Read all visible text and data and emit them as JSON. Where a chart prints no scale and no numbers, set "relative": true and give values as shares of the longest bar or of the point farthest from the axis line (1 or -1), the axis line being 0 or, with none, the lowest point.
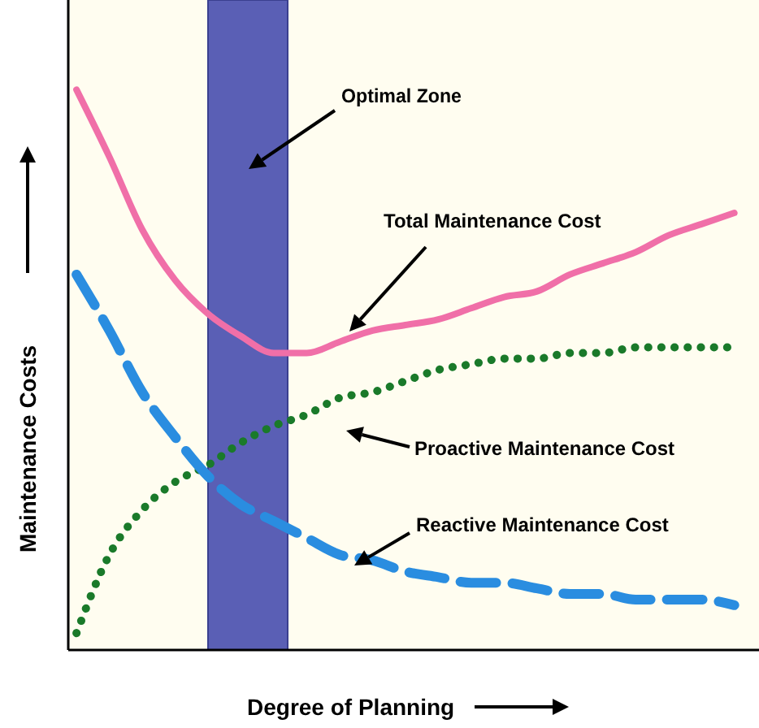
{
  "chart_data": {
    "type": "line",
    "relative": true,
    "xlabel": "Degree of Planning",
    "ylabel": "Maintenance Costs",
    "categories": [
      null,
      null,
      null,
      null,
      null,
      null,
      null,
      null,
      null,
      null,
      null,
      null,
      null,
      null,
      null,
      null,
      null,
      null,
      null,
      null,
      null
    ],
    "series": [
      {
        "name": "Total Maintenance Cost",
        "color": "#f06fa8",
        "line_style": "solid",
        "values": [
          1,
          0.88,
          0.75,
          0.66,
          0.6,
          0.56,
          0.53,
          0.53,
          0.55,
          0.57,
          0.58,
          0.59,
          0.61,
          0.63,
          0.64,
          0.67,
          0.69,
          0.71,
          0.74,
          0.76,
          0.78
        ]
      },
      {
        "name": "Proactive Maintenance Cost",
        "color": "#1a7a2a",
        "line_style": "dotted",
        "values": [
          0.03,
          0.17,
          0.25,
          0.3,
          0.33,
          0.37,
          0.4,
          0.42,
          0.45,
          0.46,
          0.48,
          0.5,
          0.51,
          0.52,
          0.52,
          0.53,
          0.53,
          0.54,
          0.54,
          0.54,
          0.54
        ]
      },
      {
        "name": "Reactive Maintenance Cost",
        "color": "#2a8de0",
        "line_style": "dashed",
        "values": [
          0.67,
          0.57,
          0.46,
          0.38,
          0.31,
          0.26,
          0.23,
          0.2,
          0.17,
          0.16,
          0.14,
          0.13,
          0.12,
          0.12,
          0.11,
          0.1,
          0.1,
          0.09,
          0.09,
          0.09,
          0.08
        ]
      }
    ],
    "annotations": [
      "Optimal Zone"
    ],
    "marker": "none",
    "legend": false
  }
}
